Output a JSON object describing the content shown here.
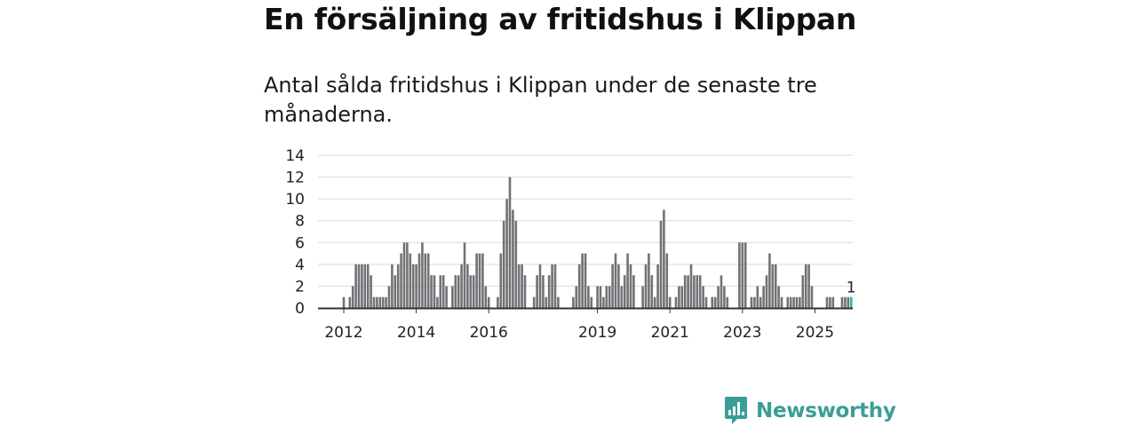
{
  "header": {
    "title": "En försäljning av fritidshus i Klippan",
    "subtitle": "Antal sålda fritidshus i Klippan under de senaste tre månaderna."
  },
  "chart_data": {
    "type": "bar",
    "title": "En försäljning av fritidshus i Klippan",
    "subtitle": "Antal sålda fritidshus i Klippan under de senaste tre månaderna.",
    "xlabel": "",
    "ylabel": "",
    "ylim": [
      0,
      14
    ],
    "yticks": [
      "0",
      "2",
      "4",
      "6",
      "8",
      "10",
      "12",
      "14"
    ],
    "grid": true,
    "x_tick_labels": [
      "2012",
      "2014",
      "2016",
      "2019",
      "2021",
      "2023",
      "2025"
    ],
    "highlight_label": "1",
    "colors": {
      "bar": "#727276",
      "highlight": "#2bb3a8",
      "grid": "#d9d9d9",
      "axis": "#333333"
    },
    "series": [
      {
        "name": "Antal sålda fritidshus",
        "values": [
          1,
          0,
          1,
          2,
          4,
          4,
          4,
          4,
          4,
          3,
          1,
          1,
          1,
          1,
          1,
          2,
          4,
          3,
          4,
          5,
          6,
          6,
          5,
          4,
          4,
          5,
          6,
          5,
          5,
          3,
          3,
          1,
          3,
          3,
          2,
          0,
          2,
          3,
          3,
          4,
          6,
          4,
          3,
          3,
          5,
          5,
          5,
          2,
          1,
          0,
          0,
          1,
          5,
          8,
          10,
          12,
          9,
          8,
          4,
          4,
          3,
          0,
          0,
          1,
          3,
          4,
          3,
          1,
          3,
          4,
          4,
          1,
          0,
          0,
          0,
          0,
          1,
          2,
          4,
          5,
          5,
          2,
          1,
          0,
          2,
          2,
          1,
          2,
          2,
          4,
          5,
          4,
          2,
          3,
          5,
          4,
          3,
          0,
          0,
          2,
          4,
          5,
          3,
          1,
          4,
          8,
          9,
          5,
          1,
          0,
          1,
          2,
          2,
          3,
          3,
          4,
          3,
          3,
          3,
          2,
          1,
          0,
          1,
          1,
          2,
          3,
          2,
          1,
          0,
          0,
          0,
          6,
          6,
          6,
          0,
          1,
          1,
          2,
          1,
          2,
          3,
          5,
          4,
          4,
          2,
          1,
          0,
          1,
          1,
          1,
          1,
          1,
          3,
          4,
          4,
          2,
          0,
          0,
          0,
          0,
          1,
          1,
          1,
          0,
          0,
          1,
          1,
          1,
          1
        ]
      }
    ]
  },
  "logo": {
    "text": "Newsworthy",
    "icon": "bar-chart-speech-bubble-icon"
  }
}
